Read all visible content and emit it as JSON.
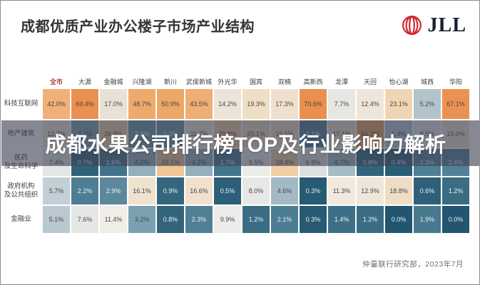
{
  "title": "成都优质产业办公楼子市场产业结构",
  "logo": {
    "brand": "JLL",
    "mark_color": "#d2232a",
    "text_color": "#15202e"
  },
  "overlay_banner": {
    "headline": "成都水果公司排行榜TOP及行业影响力解析"
  },
  "footer": {
    "source_note": "仲量联行研究部，2023年7月"
  },
  "chart_data": {
    "type": "heatmap",
    "title": "成都优质产业办公楼子市场产业结构",
    "unit": "%",
    "legend_position": "none",
    "grid": false,
    "highlight_column": "全市",
    "highlight_color": "#a0403a",
    "colormap": {
      "high": "#ea8f4e",
      "mid": "#efece5",
      "low": "#215570",
      "description": "orange = high share, white = mid, dark teal = low share"
    },
    "columns": [
      "全市",
      "大源",
      "金融城",
      "兴隆湖",
      "新川",
      "武侯新城",
      "外光华",
      "国宾",
      "双楠",
      "高新西",
      "龙潭",
      "天回",
      "怡心湖",
      "城西",
      "华阳"
    ],
    "rows": [
      {
        "label_lines": [
          "科技互联网"
        ],
        "values": [
          42.0,
          69.4,
          17.0,
          48.7,
          50.9,
          43.5,
          14.2,
          19.3,
          17.3,
          70.6,
          7.7,
          12.4,
          23.1,
          5.2,
          67.1
        ],
        "colors": [
          "#f0b077",
          "#ea9050",
          "#e9e1d6",
          "#eeaa6c",
          "#eda766",
          "#efae73",
          "#ece4d8",
          "#f0ddc6",
          "#efe0cd",
          "#ea8f4e",
          "#e6e6e3",
          "#eee6da",
          "#f0d5b5",
          "#b3c3cb",
          "#eb9253"
        ]
      },
      {
        "label_lines": [
          "地产建筑"
        ],
        "values": [
          13.7,
          3.2,
          26.9,
          3.1,
          3.3,
          11.7,
          29.8,
          20.1,
          19.5,
          2.1,
          17.1,
          54.7,
          5.4,
          8.5,
          15.0
        ],
        "colors": [
          "#eee7da",
          "#7ba1b1",
          "#f2d2a9",
          "#6b96a7",
          "#6994a5",
          "#efe8dc",
          "#f1cda0",
          "#f0dbc0",
          "#f0dcc3",
          "#4b7d93",
          "#efe0cd",
          "#eca05e",
          "#b8c8d0",
          "#e8e8e5",
          "#eee3d1"
        ]
      },
      {
        "label_lines": [
          "医药",
          "及生命科学"
        ],
        "values": [
          7.4,
          0.7,
          1.6,
          4.2,
          33.1,
          4.2,
          1.7,
          9.5,
          28.4,
          6.9,
          4.7,
          0.8,
          0.4,
          2.3,
          2.4
        ],
        "colors": [
          "#e4e6e3",
          "#30637b",
          "#41748a",
          "#93b0bc",
          "#f0c693",
          "#93b0bc",
          "#43758b",
          "#ebede9",
          "#f1cfa4",
          "#dce1e0",
          "#a5bcc6",
          "#32657c",
          "#2a5e76",
          "#4f8096",
          "#518197"
        ]
      },
      {
        "label_lines": [
          "政府机构",
          "及公共组织"
        ],
        "values": [
          5.7,
          2.2,
          2.9,
          16.1,
          0.9,
          16.6,
          0.5,
          8.0,
          4.6,
          0.3,
          11.3,
          12.9,
          18.8,
          0.6,
          1.2
        ],
        "colors": [
          "#c2cfd6",
          "#4d7e94",
          "#5b889d",
          "#efe2ce",
          "#34677e",
          "#efe1cc",
          "#2c6078",
          "#e7e8e5",
          "#a3bac5",
          "#275a73",
          "#efe9de",
          "#eee6d8",
          "#f0ddc5",
          "#2e6179",
          "#3a6d83"
        ]
      },
      {
        "label_lines": [
          "金融业"
        ],
        "values": [
          5.1,
          7.6,
          11.4,
          3.2,
          0.8,
          2.3,
          9.9,
          1.2,
          2.1,
          0.3,
          1.4,
          1.2,
          0.0,
          1.9,
          0.0
        ],
        "colors": [
          "#bac8d0",
          "#e5e7e4",
          "#efede6",
          "#7ba1b1",
          "#32657c",
          "#4f8096",
          "#ecedea",
          "#3a6d83",
          "#4b7d93",
          "#275a73",
          "#3d7086",
          "#3a6d83",
          "#215570",
          "#48798f",
          "#215570"
        ]
      }
    ]
  }
}
